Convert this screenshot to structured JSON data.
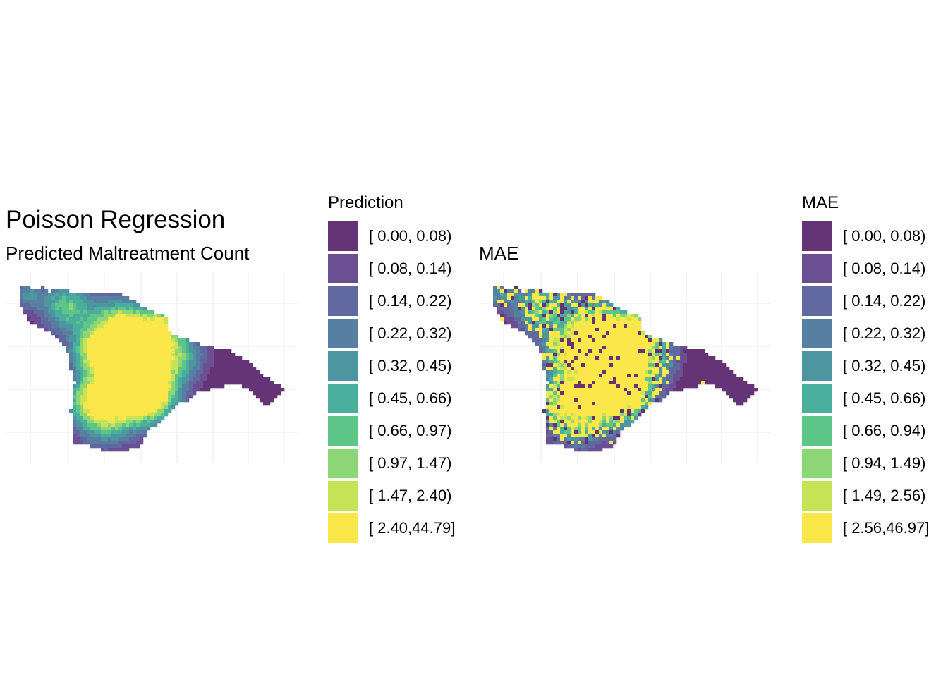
{
  "left_panel": {
    "title": "Poisson Regression",
    "subtitle": "Predicted Maltreatment Count",
    "legend": {
      "title": "Prediction",
      "items": [
        {
          "label": "[ 0.00, 0.08)",
          "color": "#643476"
        },
        {
          "label": "[ 0.08, 0.14)",
          "color": "#6a4f92"
        },
        {
          "label": "[ 0.14, 0.22)",
          "color": "#61689f"
        },
        {
          "label": "[ 0.22, 0.32)",
          "color": "#567fa2"
        },
        {
          "label": "[ 0.32, 0.45)",
          "color": "#4d95a1"
        },
        {
          "label": "[ 0.45, 0.66)",
          "color": "#4aae9c"
        },
        {
          "label": "[ 0.66, 0.97)",
          "color": "#5dc587"
        },
        {
          "label": "[ 0.97, 1.47)",
          "color": "#8dd677"
        },
        {
          "label": "[ 1.47, 2.40)",
          "color": "#c5e354"
        },
        {
          "label": "[ 2.40,44.79]",
          "color": "#fce74a"
        }
      ]
    }
  },
  "right_panel": {
    "title": "MAE",
    "legend": {
      "title": "MAE",
      "items": [
        {
          "label": "[ 0.00, 0.08)",
          "color": "#643476"
        },
        {
          "label": "[ 0.08, 0.14)",
          "color": "#6a4f92"
        },
        {
          "label": "[ 0.14, 0.22)",
          "color": "#61689f"
        },
        {
          "label": "[ 0.22, 0.32)",
          "color": "#567fa2"
        },
        {
          "label": "[ 0.32, 0.45)",
          "color": "#4d95a1"
        },
        {
          "label": "[ 0.45, 0.66)",
          "color": "#4aae9c"
        },
        {
          "label": "[ 0.66, 0.94)",
          "color": "#5dc587"
        },
        {
          "label": "[ 0.94, 1.49)",
          "color": "#8dd677"
        },
        {
          "label": "[ 1.49, 2.56)",
          "color": "#c5e354"
        },
        {
          "label": "[ 2.56,46.97]",
          "color": "#fce74a"
        }
      ]
    }
  },
  "colors": {
    "gridline": "#ebebeb",
    "background": "#ffffff"
  }
}
